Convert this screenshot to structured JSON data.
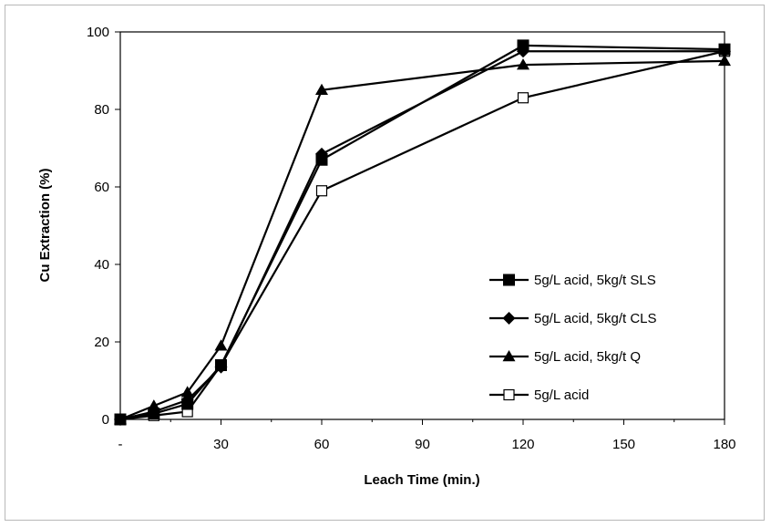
{
  "chart_data": {
    "type": "line",
    "title": "",
    "xlabel": "Leach Time (min.)",
    "ylabel": "Cu Extraction  (%)",
    "xlim": [
      0,
      180
    ],
    "ylim": [
      0,
      100
    ],
    "x_ticks": [
      0,
      30,
      60,
      90,
      120,
      150,
      180
    ],
    "x_tick_labels": [
      "-",
      "30",
      "60",
      "90",
      "120",
      "150",
      "180"
    ],
    "y_ticks": [
      0,
      20,
      40,
      60,
      80,
      100
    ],
    "y_tick_labels": [
      "0",
      "20",
      "40",
      "60",
      "80",
      "100"
    ],
    "legend_position": "bottom-right",
    "grid": false,
    "series": [
      {
        "name": "5g/L acid, 5kg/t SLS",
        "marker": "square-filled",
        "x": [
          0,
          10,
          20,
          30,
          60,
          120,
          180
        ],
        "y": [
          0,
          1.5,
          4,
          14,
          67,
          96.5,
          95.5
        ]
      },
      {
        "name": "5g/L acid, 5kg/t CLS",
        "marker": "diamond-filled",
        "x": [
          0,
          10,
          20,
          30,
          60,
          120,
          180
        ],
        "y": [
          0,
          2,
          5,
          13.5,
          68.5,
          95,
          95
        ]
      },
      {
        "name": "5g/L acid, 5kg/t Q",
        "marker": "triangle-filled",
        "x": [
          0,
          10,
          20,
          30,
          60,
          120,
          180
        ],
        "y": [
          0,
          3.5,
          7,
          19,
          85,
          91.5,
          92.5
        ]
      },
      {
        "name": "5g/L acid",
        "marker": "square-open",
        "x": [
          0,
          10,
          20,
          30,
          60,
          120,
          180
        ],
        "y": [
          0,
          1,
          2,
          14,
          59,
          83,
          95
        ]
      }
    ]
  }
}
